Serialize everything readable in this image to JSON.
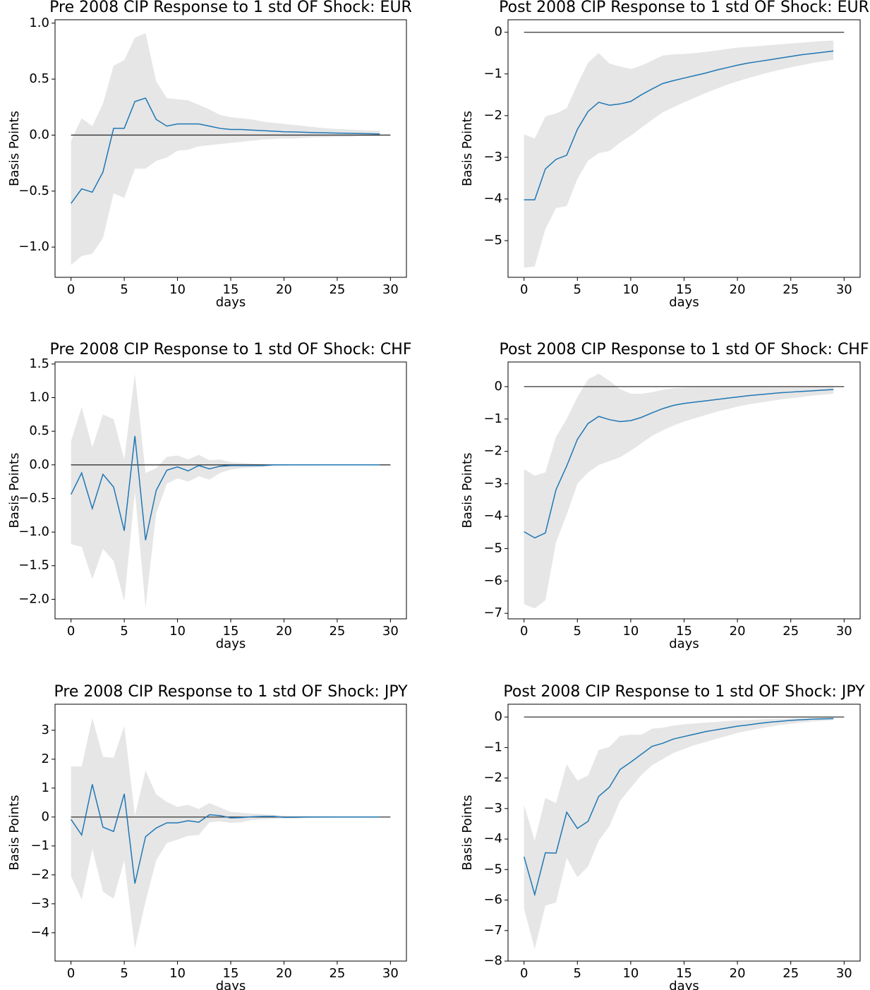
{
  "chart_data": [
    {
      "type": "line",
      "title": "Pre 2008 CIP Response to 1 std OF Shock: EUR",
      "xlabel": "days",
      "ylabel": "Basis Points",
      "x": [
        0,
        1,
        2,
        3,
        4,
        5,
        6,
        7,
        8,
        9,
        10,
        11,
        12,
        13,
        14,
        15,
        16,
        17,
        18,
        19,
        20,
        21,
        22,
        23,
        24,
        25,
        26,
        27,
        28,
        29
      ],
      "series": [
        {
          "color": "#1f77b4",
          "values": [
            -0.61,
            -0.48,
            -0.51,
            -0.33,
            0.06,
            0.06,
            0.3,
            0.33,
            0.14,
            0.08,
            0.1,
            0.1,
            0.1,
            0.08,
            0.06,
            0.05,
            0.05,
            0.045,
            0.04,
            0.035,
            0.03,
            0.028,
            0.025,
            0.022,
            0.02,
            0.018,
            0.016,
            0.014,
            0.012,
            0.01
          ]
        }
      ],
      "band": {
        "color": "#e6e6e6",
        "upper": [
          -0.05,
          0.15,
          0.08,
          0.28,
          0.62,
          0.67,
          0.87,
          0.91,
          0.48,
          0.33,
          0.32,
          0.31,
          0.27,
          0.23,
          0.18,
          0.16,
          0.15,
          0.14,
          0.12,
          0.11,
          0.1,
          0.09,
          0.08,
          0.07,
          0.06,
          0.055,
          0.05,
          0.045,
          0.04,
          0.04
        ],
        "lower": [
          -1.16,
          -1.08,
          -1.06,
          -0.92,
          -0.52,
          -0.56,
          -0.3,
          -0.3,
          -0.23,
          -0.2,
          -0.14,
          -0.13,
          -0.1,
          -0.09,
          -0.08,
          -0.07,
          -0.06,
          -0.05,
          -0.04,
          -0.035,
          -0.03,
          -0.03,
          -0.025,
          -0.02,
          -0.02,
          -0.015,
          -0.015,
          -0.01,
          -0.01,
          -0.01
        ]
      },
      "hline": {
        "y": 0,
        "x": [
          0,
          30
        ],
        "color": "#333333"
      },
      "xlim": [
        -1.5,
        31.5
      ],
      "ylim": [
        -1.27,
        1.03
      ],
      "xticks": [
        0,
        5,
        10,
        15,
        20,
        25,
        30
      ],
      "yticks": [
        {
          "value": -1.0,
          "label": "−1.0"
        },
        {
          "value": -0.5,
          "label": "−0.5"
        },
        {
          "value": 0,
          "label": "0.0"
        },
        0.5,
        {
          "value": 1.0,
          "label": "1.0"
        }
      ]
    },
    {
      "type": "line",
      "title": "Post 2008 CIP Response to 1 std OF Shock: EUR",
      "xlabel": "days",
      "ylabel": "Basis Points",
      "x": [
        0,
        1,
        2,
        3,
        4,
        5,
        6,
        7,
        8,
        9,
        10,
        11,
        12,
        13,
        14,
        15,
        16,
        17,
        18,
        19,
        20,
        21,
        22,
        23,
        24,
        25,
        26,
        27,
        28,
        29
      ],
      "series": [
        {
          "color": "#1f77b4",
          "values": [
            -4.02,
            -4.02,
            -3.28,
            -3.05,
            -2.95,
            -2.33,
            -1.9,
            -1.68,
            -1.75,
            -1.72,
            -1.66,
            -1.5,
            -1.36,
            -1.23,
            -1.16,
            -1.1,
            -1.04,
            -0.98,
            -0.91,
            -0.85,
            -0.79,
            -0.74,
            -0.7,
            -0.66,
            -0.62,
            -0.58,
            -0.54,
            -0.51,
            -0.48,
            -0.45
          ]
        }
      ],
      "band": {
        "color": "#e6e6e6",
        "upper": [
          -2.45,
          -2.55,
          -2.02,
          -1.95,
          -1.82,
          -1.25,
          -0.73,
          -0.5,
          -0.75,
          -0.82,
          -0.88,
          -0.8,
          -0.68,
          -0.56,
          -0.53,
          -0.52,
          -0.5,
          -0.47,
          -0.44,
          -0.4,
          -0.37,
          -0.35,
          -0.33,
          -0.31,
          -0.29,
          -0.27,
          -0.25,
          -0.23,
          -0.21,
          -0.2
        ],
        "lower": [
          -5.65,
          -5.62,
          -4.72,
          -4.22,
          -4.17,
          -3.52,
          -3.08,
          -2.9,
          -2.85,
          -2.65,
          -2.48,
          -2.29,
          -2.1,
          -1.92,
          -1.8,
          -1.68,
          -1.57,
          -1.46,
          -1.36,
          -1.26,
          -1.18,
          -1.1,
          -1.03,
          -0.96,
          -0.9,
          -0.84,
          -0.79,
          -0.74,
          -0.7,
          -0.66
        ]
      },
      "hline": {
        "y": 0,
        "x": [
          0,
          30
        ],
        "color": "#333333"
      },
      "xlim": [
        -1.5,
        31.5
      ],
      "ylim": [
        -5.88,
        0.3
      ],
      "xticks": [
        0,
        5,
        10,
        15,
        20,
        25,
        30
      ],
      "yticks": [
        {
          "value": -5,
          "label": "−5"
        },
        {
          "value": -4,
          "label": "−4"
        },
        {
          "value": -3,
          "label": "−3"
        },
        {
          "value": -2,
          "label": "−2"
        },
        {
          "value": -1,
          "label": "−1"
        },
        0
      ]
    },
    {
      "type": "line",
      "title": "Pre 2008 CIP Response to 1 std OF Shock: CHF",
      "xlabel": "days",
      "ylabel": "Basis Points",
      "x": [
        0,
        1,
        2,
        3,
        4,
        5,
        6,
        7,
        8,
        9,
        10,
        11,
        12,
        13,
        14,
        15,
        16,
        17,
        18,
        19,
        20,
        21,
        22,
        23,
        24,
        25,
        26,
        27,
        28,
        29
      ],
      "series": [
        {
          "color": "#1f77b4",
          "values": [
            -0.44,
            -0.12,
            -0.65,
            -0.14,
            -0.33,
            -0.98,
            0.43,
            -1.12,
            -0.38,
            -0.08,
            -0.03,
            -0.09,
            -0.01,
            -0.06,
            -0.02,
            -0.01,
            -0.01,
            -0.01,
            -0.01,
            0,
            0,
            0,
            0,
            0,
            0,
            0,
            0,
            0,
            0,
            0
          ]
        }
      ],
      "band": {
        "color": "#e6e6e6",
        "upper": [
          0.35,
          0.86,
          0.26,
          0.75,
          0.68,
          0.08,
          1.35,
          -0.12,
          -0.05,
          0.12,
          0.14,
          0.08,
          0.15,
          0.07,
          0.08,
          0.04,
          0.03,
          0.02,
          0.01,
          0.01,
          0.01,
          0.005,
          0.005,
          0,
          0,
          0,
          0,
          0,
          0,
          0
        ],
        "lower": [
          -1.18,
          -1.22,
          -1.7,
          -1.25,
          -1.43,
          -2.03,
          -0.4,
          -2.12,
          -0.72,
          -0.28,
          -0.2,
          -0.25,
          -0.17,
          -0.22,
          -0.12,
          -0.07,
          -0.05,
          -0.04,
          -0.03,
          -0.02,
          -0.015,
          -0.01,
          -0.01,
          -0.01,
          0,
          0,
          0,
          0,
          0,
          0
        ]
      },
      "hline": {
        "y": 0,
        "x": [
          0,
          30
        ],
        "color": "#333333"
      },
      "xlim": [
        -1.5,
        31.5
      ],
      "ylim": [
        -2.29,
        1.53
      ],
      "xticks": [
        0,
        5,
        10,
        15,
        20,
        25,
        30
      ],
      "yticks": [
        {
          "value": -2.0,
          "label": "−2.0"
        },
        {
          "value": -1.5,
          "label": "−1.5"
        },
        {
          "value": -1.0,
          "label": "−1.0"
        },
        {
          "value": -0.5,
          "label": "−0.5"
        },
        {
          "value": 0,
          "label": "0.0"
        },
        0.5,
        {
          "value": 1.0,
          "label": "1.0"
        },
        1.5
      ]
    },
    {
      "type": "line",
      "title": "Post 2008 CIP Response to 1 std OF Shock: CHF",
      "xlabel": "days",
      "ylabel": "Basis Points",
      "x": [
        0,
        1,
        2,
        3,
        4,
        5,
        6,
        7,
        8,
        9,
        10,
        11,
        12,
        13,
        14,
        15,
        16,
        17,
        18,
        19,
        20,
        21,
        22,
        23,
        24,
        25,
        26,
        27,
        28,
        29
      ],
      "series": [
        {
          "color": "#1f77b4",
          "values": [
            -4.48,
            -4.67,
            -4.52,
            -3.18,
            -2.45,
            -1.63,
            -1.14,
            -0.92,
            -1.02,
            -1.08,
            -1.05,
            -0.95,
            -0.81,
            -0.68,
            -0.58,
            -0.52,
            -0.48,
            -0.44,
            -0.4,
            -0.36,
            -0.32,
            -0.28,
            -0.25,
            -0.22,
            -0.19,
            -0.17,
            -0.15,
            -0.13,
            -0.11,
            -0.09
          ]
        }
      ],
      "band": {
        "color": "#e6e6e6",
        "upper": [
          -2.55,
          -2.75,
          -2.65,
          -1.55,
          -1.0,
          -0.32,
          0.22,
          0.4,
          0.18,
          -0.08,
          -0.22,
          -0.22,
          -0.17,
          -0.1,
          -0.05,
          -0.03,
          -0.02,
          -0.02,
          -0.02,
          -0.01,
          -0.01,
          -0.01,
          -0.01,
          -0.01,
          -0.01,
          -0.01,
          -0.01,
          -0.01,
          -0.01,
          -0.01
        ],
        "lower": [
          -6.72,
          -6.85,
          -6.6,
          -4.8,
          -3.95,
          -3.0,
          -2.65,
          -2.42,
          -2.3,
          -2.18,
          -1.98,
          -1.75,
          -1.52,
          -1.35,
          -1.2,
          -1.08,
          -0.98,
          -0.88,
          -0.78,
          -0.7,
          -0.62,
          -0.55,
          -0.5,
          -0.45,
          -0.4,
          -0.36,
          -0.32,
          -0.28,
          -0.25,
          -0.22
        ]
      },
      "hline": {
        "y": 0,
        "x": [
          0,
          30
        ],
        "color": "#333333"
      },
      "xlim": [
        -1.5,
        31.5
      ],
      "ylim": [
        -7.17,
        0.76
      ],
      "xticks": [
        0,
        5,
        10,
        15,
        20,
        25,
        30
      ],
      "yticks": [
        {
          "value": -7,
          "label": "−7"
        },
        {
          "value": -6,
          "label": "−6"
        },
        {
          "value": -5,
          "label": "−5"
        },
        {
          "value": -4,
          "label": "−4"
        },
        {
          "value": -3,
          "label": "−3"
        },
        {
          "value": -2,
          "label": "−2"
        },
        {
          "value": -1,
          "label": "−1"
        },
        0
      ]
    },
    {
      "type": "line",
      "title": "Pre 2008 CIP Response to 1 std OF Shock: JPY",
      "xlabel": "days",
      "ylabel": "Basis Points",
      "x": [
        0,
        1,
        2,
        3,
        4,
        5,
        6,
        7,
        8,
        9,
        10,
        11,
        12,
        13,
        14,
        15,
        16,
        17,
        18,
        19,
        20,
        21,
        22,
        23,
        24,
        25,
        26,
        27,
        28,
        29
      ],
      "series": [
        {
          "color": "#1f77b4",
          "values": [
            -0.08,
            -0.62,
            1.13,
            -0.35,
            -0.5,
            0.8,
            -2.3,
            -0.68,
            -0.38,
            -0.2,
            -0.2,
            -0.13,
            -0.18,
            0.08,
            0.05,
            -0.03,
            -0.02,
            0.01,
            0.02,
            0.02,
            -0.01,
            -0.01,
            0,
            0,
            0,
            0,
            0,
            0,
            0,
            0
          ]
        }
      ],
      "band": {
        "color": "#e6e6e6",
        "upper": [
          1.75,
          1.75,
          3.42,
          2.08,
          2.05,
          3.15,
          0.05,
          1.6,
          0.78,
          0.52,
          0.35,
          0.42,
          0.28,
          0.48,
          0.33,
          0.18,
          0.15,
          0.12,
          0.1,
          0.08,
          0.05,
          0.04,
          0.03,
          0.02,
          0.02,
          0.01,
          0.01,
          0.01,
          0.01,
          0.01
        ],
        "lower": [
          -2.05,
          -2.85,
          -1.1,
          -2.58,
          -2.82,
          -1.5,
          -4.55,
          -2.92,
          -1.5,
          -0.9,
          -0.78,
          -0.65,
          -0.62,
          -0.18,
          -0.15,
          -0.2,
          -0.18,
          -0.1,
          -0.08,
          -0.06,
          -0.06,
          -0.05,
          -0.04,
          -0.03,
          -0.02,
          -0.02,
          -0.01,
          -0.01,
          -0.01,
          -0.01
        ]
      },
      "hline": {
        "y": 0,
        "x": [
          0,
          30
        ],
        "color": "#333333"
      },
      "xlim": [
        -1.5,
        31.5
      ],
      "ylim": [
        -4.98,
        3.9
      ],
      "xticks": [
        0,
        5,
        10,
        15,
        20,
        25,
        30
      ],
      "yticks": [
        {
          "value": -4,
          "label": "−4"
        },
        {
          "value": -3,
          "label": "−3"
        },
        {
          "value": -2,
          "label": "−2"
        },
        {
          "value": -1,
          "label": "−1"
        },
        0,
        1,
        2,
        3
      ]
    },
    {
      "type": "line",
      "title": "Post 2008 CIP Response to 1 std OF Shock: JPY",
      "xlabel": "days",
      "ylabel": "Basis Points",
      "x": [
        0,
        1,
        2,
        3,
        4,
        5,
        6,
        7,
        8,
        9,
        10,
        11,
        12,
        13,
        14,
        15,
        16,
        17,
        18,
        19,
        20,
        21,
        22,
        23,
        24,
        25,
        26,
        27,
        28,
        29
      ],
      "series": [
        {
          "color": "#1f77b4",
          "values": [
            -4.58,
            -5.82,
            -4.45,
            -4.46,
            -3.12,
            -3.65,
            -3.42,
            -2.6,
            -2.3,
            -1.72,
            -1.48,
            -1.22,
            -0.96,
            -0.86,
            -0.72,
            -0.64,
            -0.56,
            -0.48,
            -0.42,
            -0.36,
            -0.3,
            -0.26,
            -0.21,
            -0.17,
            -0.14,
            -0.11,
            -0.09,
            -0.07,
            -0.06,
            -0.05
          ]
        }
      ],
      "band": {
        "color": "#e6e6e6",
        "upper": [
          -2.88,
          -4.05,
          -2.65,
          -2.82,
          -1.55,
          -2.08,
          -1.92,
          -1.08,
          -0.98,
          -0.62,
          -0.58,
          -0.58,
          -0.38,
          -0.35,
          -0.28,
          -0.24,
          -0.21,
          -0.18,
          -0.16,
          -0.13,
          -0.11,
          -0.1,
          -0.08,
          -0.06,
          -0.05,
          -0.04,
          -0.03,
          -0.03,
          -0.02,
          -0.02
        ],
        "lower": [
          -6.28,
          -7.6,
          -6.18,
          -6.08,
          -4.62,
          -5.25,
          -4.9,
          -4.05,
          -3.58,
          -2.75,
          -2.32,
          -1.9,
          -1.58,
          -1.38,
          -1.18,
          -1.05,
          -0.92,
          -0.82,
          -0.72,
          -0.62,
          -0.52,
          -0.45,
          -0.38,
          -0.32,
          -0.26,
          -0.22,
          -0.18,
          -0.15,
          -0.12,
          -0.1
        ]
      },
      "hline": {
        "y": 0,
        "x": [
          0,
          30
        ],
        "color": "#333333"
      },
      "xlim": [
        -1.5,
        31.5
      ],
      "ylim": [
        -8,
        0.42
      ],
      "xticks": [
        0,
        5,
        10,
        15,
        20,
        25,
        30
      ],
      "yticks": [
        {
          "value": -8,
          "label": "−8"
        },
        {
          "value": -7,
          "label": "−7"
        },
        {
          "value": -6,
          "label": "−6"
        },
        {
          "value": -5,
          "label": "−5"
        },
        {
          "value": -4,
          "label": "−4"
        },
        {
          "value": -3,
          "label": "−3"
        },
        {
          "value": -2,
          "label": "−2"
        },
        {
          "value": -1,
          "label": "−1"
        },
        0
      ]
    }
  ]
}
